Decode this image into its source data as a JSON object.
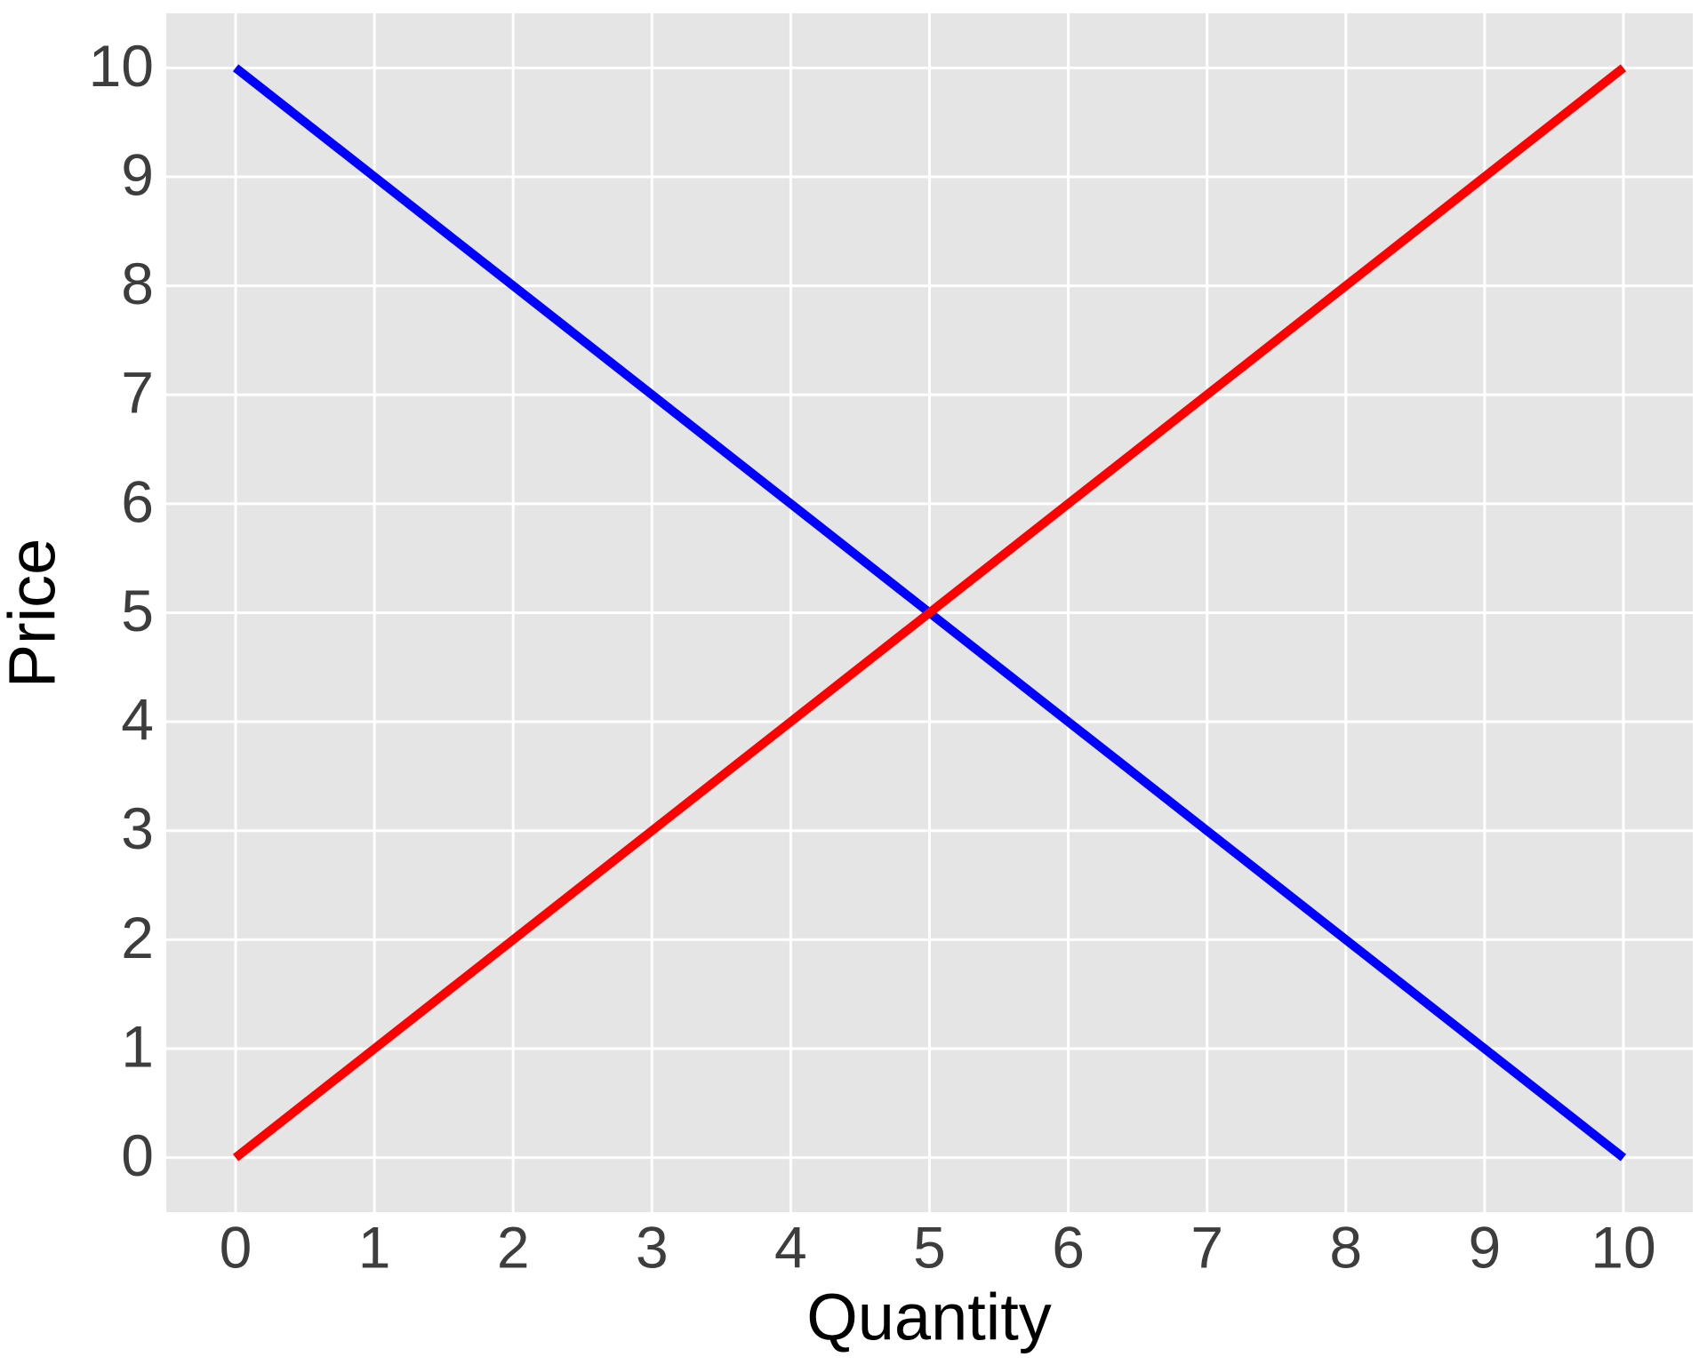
{
  "chart_data": {
    "type": "line",
    "x_label": "Quantity",
    "y_label": "Price",
    "x": [
      0,
      1,
      2,
      3,
      4,
      5,
      6,
      7,
      8,
      9,
      10
    ],
    "series": [
      {
        "color": "#0000ff",
        "values": [
          10,
          9,
          8,
          7,
          6,
          5,
          4,
          3,
          2,
          1,
          0
        ]
      },
      {
        "color": "#ff0000",
        "values": [
          0,
          1,
          2,
          3,
          4,
          5,
          6,
          7,
          8,
          9,
          10
        ]
      }
    ],
    "xlim": [
      -0.5,
      10.5
    ],
    "ylim": [
      -0.5,
      10.5
    ],
    "xticks": [
      0,
      1,
      2,
      3,
      4,
      5,
      6,
      7,
      8,
      9,
      10
    ],
    "yticks": [
      0,
      1,
      2,
      3,
      4,
      5,
      6,
      7,
      8,
      9,
      10
    ],
    "grid": true
  }
}
